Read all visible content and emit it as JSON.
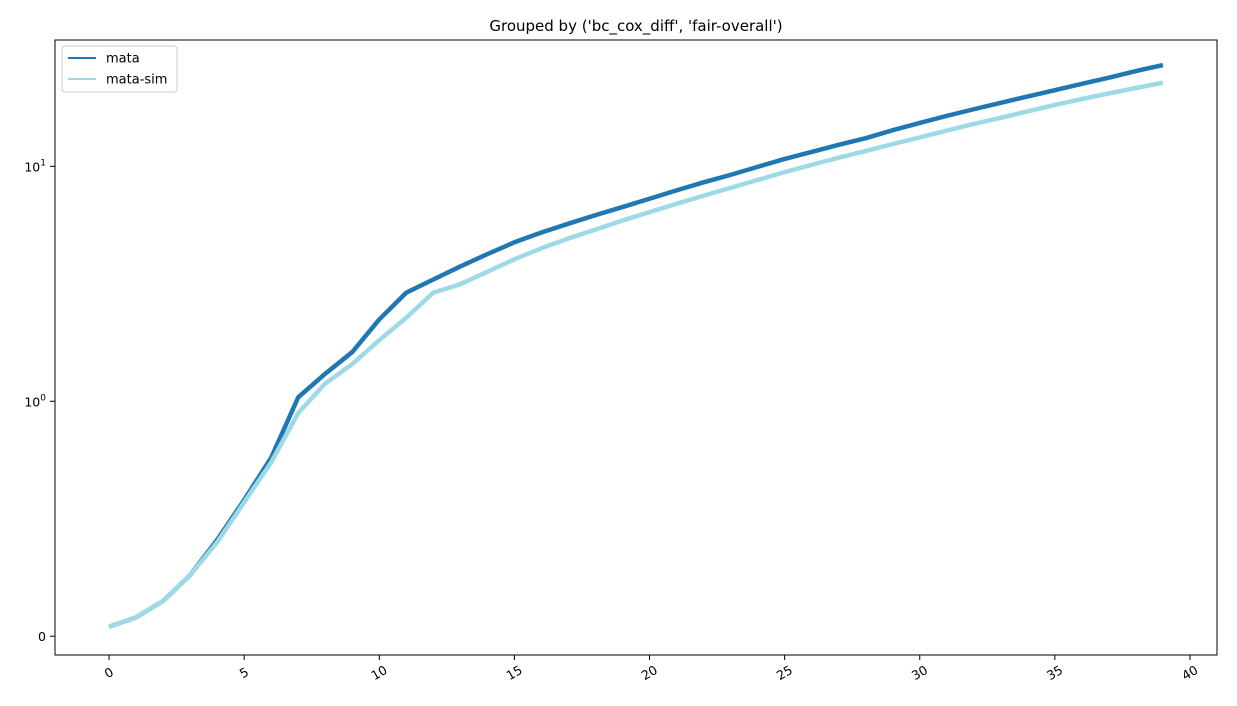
{
  "chart_data": {
    "type": "line",
    "title": "Grouped by ('bc_cox_diff', 'fair-overall')",
    "xlabel": "",
    "ylabel": "",
    "xlim": [
      -2,
      41
    ],
    "yscale": "symlog",
    "x_ticks": [
      0,
      5,
      10,
      15,
      20,
      25,
      30,
      35,
      40
    ],
    "x_tick_labels": [
      "0",
      "5",
      "10",
      "15",
      "20",
      "25",
      "30",
      "35",
      "40"
    ],
    "y_ticks": [
      {
        "value": 0,
        "base": "0",
        "exp": ""
      },
      {
        "value": 1,
        "base": "10",
        "exp": "0"
      },
      {
        "value": 10,
        "base": "10",
        "exp": "1"
      }
    ],
    "grid": false,
    "legend": {
      "position": "top-left"
    },
    "series": [
      {
        "name": "mata",
        "color": "#1f77b4",
        "x": [
          0,
          1,
          2,
          3,
          4,
          5,
          6,
          7,
          8,
          9,
          10,
          11,
          12,
          13,
          14,
          15,
          16,
          17,
          18,
          19,
          20,
          21,
          22,
          23,
          24,
          25,
          26,
          27,
          28,
          29,
          30,
          31,
          32,
          33,
          34,
          35,
          36,
          37,
          38,
          39
        ],
        "values": [
          0.04,
          0.08,
          0.15,
          0.26,
          0.41,
          0.58,
          0.76,
          1.04,
          1.31,
          1.62,
          2.23,
          2.9,
          3.3,
          3.75,
          4.23,
          4.75,
          5.23,
          5.7,
          6.2,
          6.71,
          7.28,
          7.9,
          8.55,
          9.2,
          9.95,
          10.75,
          11.52,
          12.35,
          13.18,
          14.25,
          15.3,
          16.4,
          17.5,
          18.65,
          19.85,
          21.1,
          22.45,
          23.85,
          25.45,
          27.0
        ]
      },
      {
        "name": "mata-sim",
        "color": "#9edae5",
        "x": [
          0,
          1,
          2,
          3,
          4,
          5,
          6,
          7,
          8,
          9,
          10,
          11,
          12,
          13,
          14,
          15,
          16,
          17,
          18,
          19,
          20,
          21,
          22,
          23,
          24,
          25,
          26,
          27,
          28,
          29,
          30,
          31,
          32,
          33,
          34,
          35,
          36,
          37,
          38,
          39
        ],
        "values": [
          0.04,
          0.08,
          0.15,
          0.26,
          0.4,
          0.57,
          0.74,
          0.95,
          1.19,
          1.44,
          1.82,
          2.27,
          2.9,
          3.15,
          3.56,
          4.02,
          4.48,
          4.93,
          5.38,
          5.88,
          6.38,
          6.93,
          7.5,
          8.1,
          8.75,
          9.45,
          10.15,
          10.88,
          11.62,
          12.45,
          13.28,
          14.2,
          15.15,
          16.1,
          17.15,
          18.25,
          19.35,
          20.45,
          21.55,
          22.7
        ]
      }
    ]
  }
}
